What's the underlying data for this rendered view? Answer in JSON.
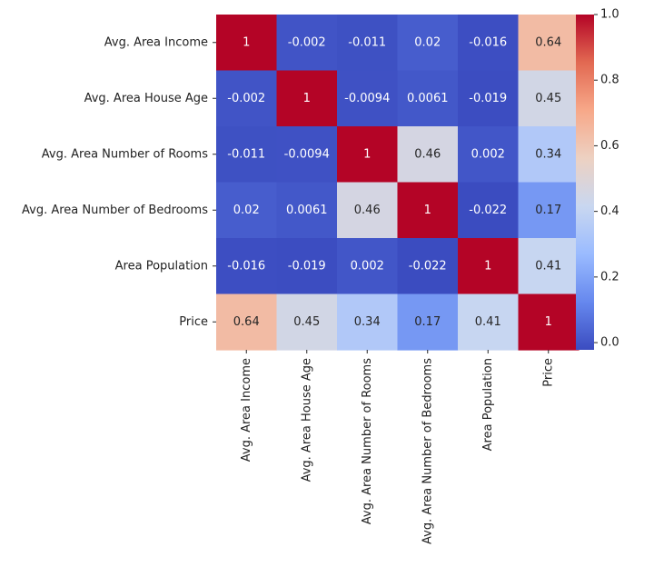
{
  "chart_data": {
    "type": "heatmap",
    "rows": [
      "Avg. Area Income",
      "Avg. Area House Age",
      "Avg. Area Number of Rooms",
      "Avg. Area Number of Bedrooms",
      "Area Population",
      "Price"
    ],
    "columns": [
      "Avg. Area Income",
      "Avg. Area House Age",
      "Avg. Area Number of Rooms",
      "Avg. Area Number of Bedrooms",
      "Area Population",
      "Price"
    ],
    "values": [
      [
        1,
        -0.002,
        -0.011,
        0.02,
        -0.016,
        0.64
      ],
      [
        -0.002,
        1,
        -0.0094,
        0.0061,
        -0.019,
        0.45
      ],
      [
        -0.011,
        -0.0094,
        1,
        0.46,
        0.002,
        0.34
      ],
      [
        0.02,
        0.0061,
        0.46,
        1,
        -0.022,
        0.17
      ],
      [
        -0.016,
        -0.019,
        0.002,
        -0.022,
        1,
        0.41
      ],
      [
        0.64,
        0.45,
        0.34,
        0.17,
        0.41,
        1
      ]
    ],
    "cell_labels": [
      [
        "1",
        "-0.002",
        "-0.011",
        "0.02",
        "-0.016",
        "0.64"
      ],
      [
        "-0.002",
        "1",
        "-0.0094",
        "0.0061",
        "-0.019",
        "0.45"
      ],
      [
        "-0.011",
        "-0.0094",
        "1",
        "0.46",
        "0.002",
        "0.34"
      ],
      [
        "0.02",
        "0.0061",
        "0.46",
        "1",
        "-0.022",
        "0.17"
      ],
      [
        "-0.016",
        "-0.019",
        "0.002",
        "-0.022",
        "1",
        "0.41"
      ],
      [
        "0.64",
        "0.45",
        "0.34",
        "0.17",
        "0.41",
        "1"
      ]
    ],
    "colormap": "coolwarm",
    "colormap_stops": [
      "#3b4cc0",
      "#6688ee",
      "#9abbff",
      "#c9d7f0",
      "#edd1c2",
      "#f7a889",
      "#e26952",
      "#b40426"
    ],
    "colorbar": {
      "range": [
        -0.022,
        1.0
      ],
      "ticks": [
        0.0,
        0.2,
        0.4,
        0.6,
        0.8,
        1.0
      ],
      "tick_labels": [
        "0.0",
        "0.2",
        "0.4",
        "0.6",
        "0.8",
        "1.0"
      ]
    },
    "title": "",
    "xlabel": "",
    "ylabel": ""
  }
}
